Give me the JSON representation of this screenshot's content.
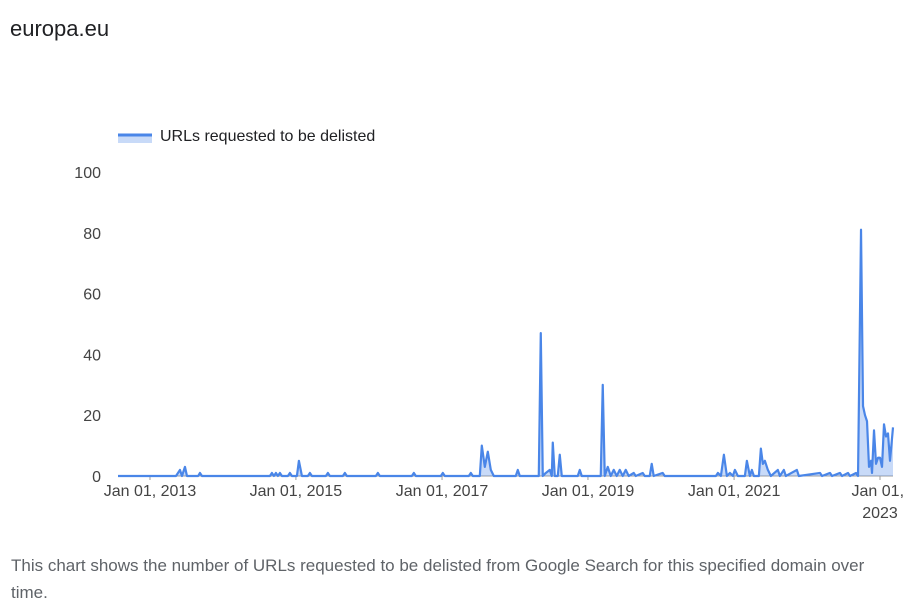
{
  "chart_data": {
    "type": "line",
    "title": "europa.eu",
    "description": "This chart shows the number of URLs requested to be delisted from Google Search for this specified domain over time.",
    "x": [
      "2012-07-25",
      "2013-05-11",
      "2013-05-31",
      "2013-06-10",
      "2013-06-25",
      "2013-07-05",
      "2013-08-30",
      "2013-09-08",
      "2013-09-18",
      "2014-08-24",
      "2014-09-03",
      "2014-09-13",
      "2014-09-23",
      "2014-10-03",
      "2014-10-13",
      "2014-10-23",
      "2014-11-22",
      "2014-12-02",
      "2014-12-12",
      "2015-01-06",
      "2015-01-16",
      "2015-01-31",
      "2015-03-02",
      "2015-03-12",
      "2015-03-22",
      "2015-05-31",
      "2015-06-10",
      "2015-06-20",
      "2015-08-24",
      "2015-09-03",
      "2015-09-13",
      "2016-02-05",
      "2016-02-15",
      "2016-02-25",
      "2016-08-03",
      "2016-08-13",
      "2016-08-23",
      "2016-12-26",
      "2017-01-05",
      "2017-01-15",
      "2017-05-15",
      "2017-05-25",
      "2017-06-04",
      "2017-07-09",
      "2017-07-19",
      "2017-08-03",
      "2017-08-18",
      "2017-09-02",
      "2017-09-17",
      "2018-01-05",
      "2018-01-15",
      "2018-01-25",
      "2018-04-30",
      "2018-05-10",
      "2018-05-20",
      "2018-06-04",
      "2018-06-24",
      "2018-07-04",
      "2018-07-09",
      "2018-07-19",
      "2018-08-03",
      "2018-08-13",
      "2018-08-23",
      "2018-11-11",
      "2018-11-21",
      "2018-12-01",
      "2019-03-06",
      "2019-03-16",
      "2019-03-26",
      "2019-04-10",
      "2019-04-25",
      "2019-05-10",
      "2019-05-25",
      "2019-06-09",
      "2019-06-24",
      "2019-07-09",
      "2019-07-24",
      "2019-08-18",
      "2019-08-28",
      "2019-10-02",
      "2019-10-12",
      "2019-11-06",
      "2019-11-16",
      "2019-11-26",
      "2020-01-10",
      "2020-01-20",
      "2020-10-02",
      "2020-10-12",
      "2020-10-27",
      "2020-11-11",
      "2020-11-26",
      "2020-12-11",
      "2020-12-26",
      "2021-01-05",
      "2021-01-20",
      "2021-02-24",
      "2021-03-06",
      "2021-03-21",
      "2021-03-31",
      "2021-04-10",
      "2021-05-05",
      "2021-05-15",
      "2021-05-25",
      "2021-06-04",
      "2021-06-19",
      "2021-07-04",
      "2021-08-08",
      "2021-08-18",
      "2021-09-07",
      "2021-09-17",
      "2021-11-11",
      "2021-11-21",
      "2022-03-07",
      "2022-03-17",
      "2022-04-26",
      "2022-05-06",
      "2022-06-15",
      "2022-06-25",
      "2022-07-25",
      "2022-08-04",
      "2022-09-03",
      "2022-09-13",
      "2022-09-28",
      "2022-10-08",
      "2022-10-18",
      "2022-10-28",
      "2022-11-07",
      "2022-11-17",
      "2022-11-22",
      "2022-12-02",
      "2022-12-12",
      "2022-12-22",
      "2023-01-01",
      "2023-01-11",
      "2023-01-21",
      "2023-01-31",
      "2023-02-10",
      "2023-02-20",
      "2023-03-07"
    ],
    "series": [
      {
        "name": "URLs requested to be delisted",
        "color": "#4a86e8",
        "values": [
          0,
          0,
          2,
          0,
          3,
          0,
          0,
          1,
          0,
          0,
          1,
          0,
          1,
          0,
          1,
          0,
          0,
          1,
          0,
          0,
          5,
          0,
          0,
          1,
          0,
          0,
          1,
          0,
          0,
          1,
          0,
          0,
          1,
          0,
          0,
          1,
          0,
          0,
          1,
          0,
          0,
          1,
          0,
          0,
          10,
          3,
          8,
          2,
          0,
          0,
          2,
          0,
          0,
          47,
          0,
          1,
          2,
          0,
          11,
          0,
          0,
          7,
          0,
          0,
          2,
          0,
          0,
          30,
          0,
          3,
          0,
          2,
          0,
          2,
          0,
          2,
          0,
          1,
          0,
          1,
          0,
          0,
          4,
          0,
          1,
          0,
          0,
          1,
          0,
          7,
          0,
          1,
          0,
          2,
          0,
          0,
          5,
          0,
          2,
          0,
          0,
          9,
          4,
          5,
          2,
          0,
          2,
          0,
          2,
          0,
          2,
          0,
          1,
          0,
          1,
          0,
          1,
          0,
          1,
          0,
          1,
          0,
          81,
          23,
          20,
          18,
          3,
          5,
          1,
          15,
          4,
          6,
          6,
          3,
          17,
          13,
          14,
          5,
          16
        ]
      }
    ],
    "xlim": [
      "2012-07-25",
      "2023-03-07"
    ],
    "xticks": [
      {
        "value": "2013-01-01",
        "label": "Jan 01, 2013"
      },
      {
        "value": "2015-01-01",
        "label": "Jan 01, 2015"
      },
      {
        "value": "2017-01-01",
        "label": "Jan 01, 2017"
      },
      {
        "value": "2019-01-01",
        "label": "Jan 01, 2019"
      },
      {
        "value": "2021-01-01",
        "label": "Jan 01, 2021"
      },
      {
        "value": "2023-01-01",
        "label": "Jan 01, 2023"
      }
    ],
    "ylim": [
      0,
      100
    ],
    "yticks": [
      0,
      20,
      40,
      60,
      80,
      100
    ],
    "grid": false,
    "area": true,
    "legend": "top-left"
  }
}
